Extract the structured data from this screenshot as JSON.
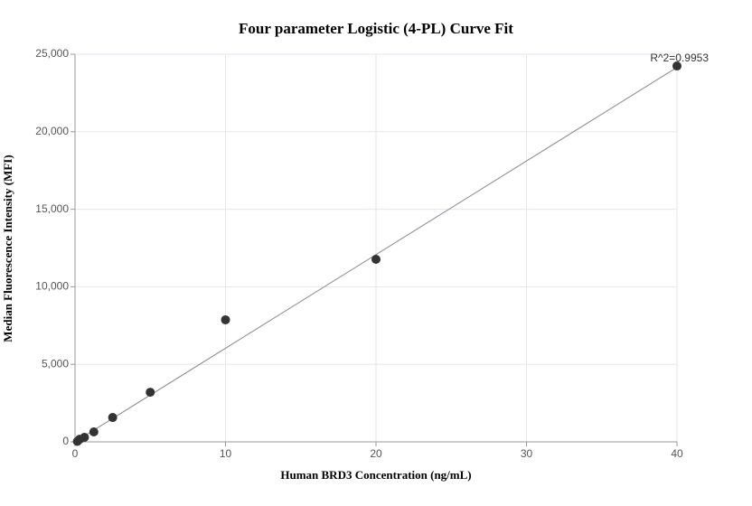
{
  "chart_data": {
    "type": "scatter",
    "title": "Four parameter Logistic (4-PL) Curve Fit",
    "x_label": "Human BRD3 Concentration (ng/mL)",
    "y_label": "Median Fluorescence Intensity (MFI)",
    "annotation": "R^2=0.9953",
    "xlim": [
      0,
      40
    ],
    "ylim": [
      0,
      25000
    ],
    "xticks": [
      0,
      10,
      20,
      30,
      40
    ],
    "yticks": [
      0,
      {
        "value": 5000,
        "label": "5,000"
      },
      {
        "value": 10000,
        "label": "10,000"
      },
      {
        "value": 15000,
        "label": "15,000"
      },
      {
        "value": 20000,
        "label": "20,000"
      },
      {
        "value": 25000,
        "label": "25,000"
      }
    ],
    "grid": true,
    "series": [
      {
        "type": "scatter",
        "color": "#333333",
        "x": [
          0.156,
          0.3125,
          0.625,
          1.25,
          2.5,
          5,
          10,
          20,
          40
        ],
        "values": [
          30,
          170,
          290,
          640,
          1570,
          3200,
          7870,
          11770,
          24240
        ]
      },
      {
        "type": "line",
        "color": "#888888",
        "x": [
          0,
          40
        ],
        "values": [
          0,
          24150
        ]
      }
    ]
  }
}
